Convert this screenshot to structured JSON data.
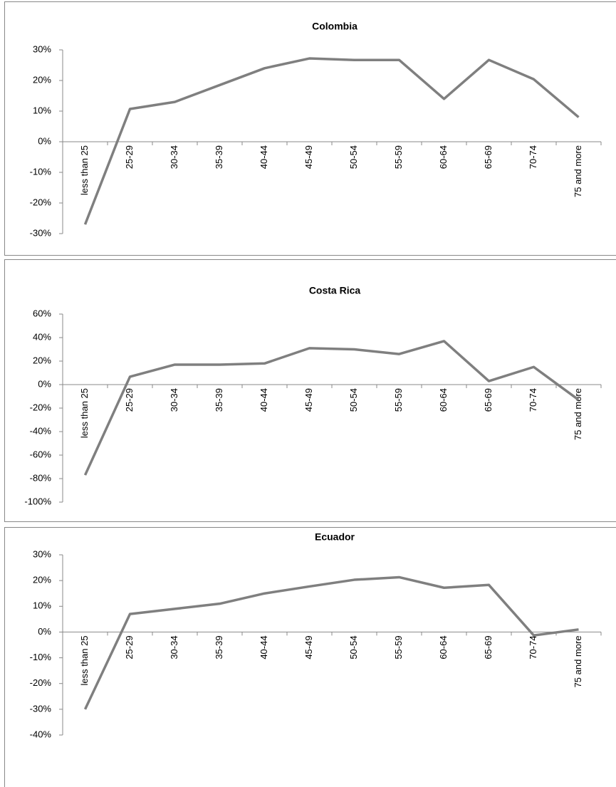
{
  "chart_data": [
    {
      "type": "line",
      "title": "Colombia",
      "categories": [
        "less than 25",
        "25-29",
        "30-34",
        "35-39",
        "40-44",
        "45-49",
        "50-54",
        "55-59",
        "60-64",
        "65-69",
        "70-74",
        "75 and more"
      ],
      "series": [
        {
          "color": "#7f7f7f",
          "values": [
            -27,
            10.7,
            13,
            18.5,
            24,
            27.2,
            26.7,
            26.7,
            14,
            26.7,
            20.4,
            8
          ]
        }
      ],
      "ylim": [
        -30,
        30
      ],
      "yticks": [
        {
          "value": 30,
          "label": "30%"
        },
        {
          "value": 20,
          "label": "20%"
        },
        {
          "value": 10,
          "label": "10%"
        },
        {
          "value": 0,
          "label": "0%"
        },
        {
          "value": -10,
          "label": "-10%"
        },
        {
          "value": -20,
          "label": "-20%"
        },
        {
          "value": -30,
          "label": "-30%"
        }
      ]
    },
    {
      "type": "line",
      "title": "Costa Rica",
      "categories": [
        "less than 25",
        "25-29",
        "30-34",
        "35-39",
        "40-44",
        "45-49",
        "50-54",
        "55-59",
        "60-64",
        "65-69",
        "70-74",
        "75 and more"
      ],
      "series": [
        {
          "color": "#7f7f7f",
          "values": [
            -77,
            6.7,
            17,
            17,
            18,
            31,
            30,
            26,
            37,
            3,
            15,
            -13
          ]
        }
      ],
      "ylim": [
        -100,
        60
      ],
      "yticks": [
        {
          "value": 60,
          "label": "60%"
        },
        {
          "value": 40,
          "label": "40%"
        },
        {
          "value": 20,
          "label": "20%"
        },
        {
          "value": 0,
          "label": "0%"
        },
        {
          "value": -20,
          "label": "-20%"
        },
        {
          "value": -40,
          "label": "-40%"
        },
        {
          "value": -60,
          "label": "-60%"
        },
        {
          "value": -80,
          "label": "-80%"
        },
        {
          "value": -100,
          "label": "-100%"
        }
      ]
    },
    {
      "type": "line",
      "title": "Ecuador",
      "categories": [
        "less than 25",
        "25-29",
        "30-34",
        "35-39",
        "40-44",
        "45-49",
        "50-54",
        "55-59",
        "60-64",
        "65-69",
        "70-74",
        "75 and more"
      ],
      "series": [
        {
          "color": "#7f7f7f",
          "values": [
            -30,
            7,
            9,
            11,
            15,
            17.7,
            20.3,
            21.3,
            17.2,
            18.3,
            -1.3,
            1
          ]
        }
      ],
      "ylim": [
        -40,
        30
      ],
      "yticks": [
        {
          "value": 30,
          "label": "30%"
        },
        {
          "value": 20,
          "label": "20%"
        },
        {
          "value": 10,
          "label": "10%"
        },
        {
          "value": 0,
          "label": "0%"
        },
        {
          "value": -10,
          "label": "-10%"
        },
        {
          "value": -20,
          "label": "-20%"
        },
        {
          "value": -30,
          "label": "-30%"
        },
        {
          "value": -40,
          "label": "-40%"
        }
      ]
    }
  ]
}
